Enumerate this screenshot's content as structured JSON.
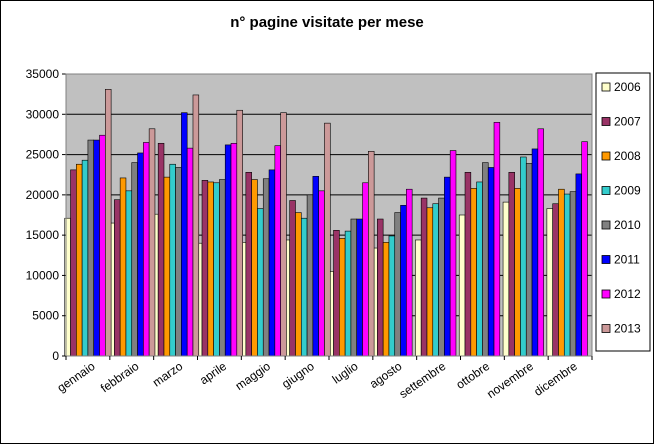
{
  "chart_data": {
    "type": "bar",
    "title": "n° pagine visitate per mese",
    "xlabel": "",
    "ylabel": "",
    "ylim": [
      0,
      35000
    ],
    "yticks": [
      0,
      5000,
      10000,
      15000,
      20000,
      25000,
      30000,
      35000
    ],
    "grid": true,
    "plot_background": "#C0C0C0",
    "legend_position": "right",
    "categories": [
      "gennaio",
      "febbraio",
      "marzo",
      "aprile",
      "maggio",
      "giugno",
      "luglio",
      "agosto",
      "settembre",
      "ottobre",
      "novembre",
      "dicembre"
    ],
    "series": [
      {
        "name": "2006",
        "color": "#FFFFCC",
        "values": [
          17100,
          16500,
          17600,
          14000,
          14100,
          14400,
          10500,
          13400,
          14400,
          17500,
          19100,
          18300
        ]
      },
      {
        "name": "2007",
        "color": "#993366",
        "values": [
          23100,
          19400,
          26400,
          21800,
          22800,
          19300,
          15600,
          17000,
          19600,
          22800,
          22800,
          18900
        ]
      },
      {
        "name": "2008",
        "color": "#FF9900",
        "values": [
          23800,
          22100,
          22200,
          21600,
          21900,
          17800,
          14600,
          14100,
          18400,
          20800,
          20800,
          20700
        ]
      },
      {
        "name": "2009",
        "color": "#33CCCC",
        "values": [
          24300,
          20500,
          23800,
          21500,
          18300,
          17100,
          15500,
          14900,
          18900,
          21600,
          24700,
          20100
        ]
      },
      {
        "name": "2010",
        "color": "#808080",
        "values": [
          26800,
          24000,
          23400,
          21900,
          22000,
          20000,
          17000,
          17800,
          19600,
          24000,
          23900,
          20400
        ]
      },
      {
        "name": "2011",
        "color": "#0000FF",
        "values": [
          26800,
          25200,
          30200,
          26200,
          23100,
          22300,
          17000,
          18700,
          22200,
          23400,
          25700,
          22600
        ]
      },
      {
        "name": "2012",
        "color": "#FF00FF",
        "values": [
          27400,
          26500,
          25800,
          26400,
          26100,
          20500,
          21500,
          20700,
          25500,
          29000,
          28200,
          26600
        ]
      },
      {
        "name": "2013",
        "color": "#CC9999",
        "values": [
          33100,
          28200,
          32400,
          30500,
          30200,
          28900,
          25400,
          null,
          null,
          null,
          null,
          null
        ]
      }
    ]
  }
}
